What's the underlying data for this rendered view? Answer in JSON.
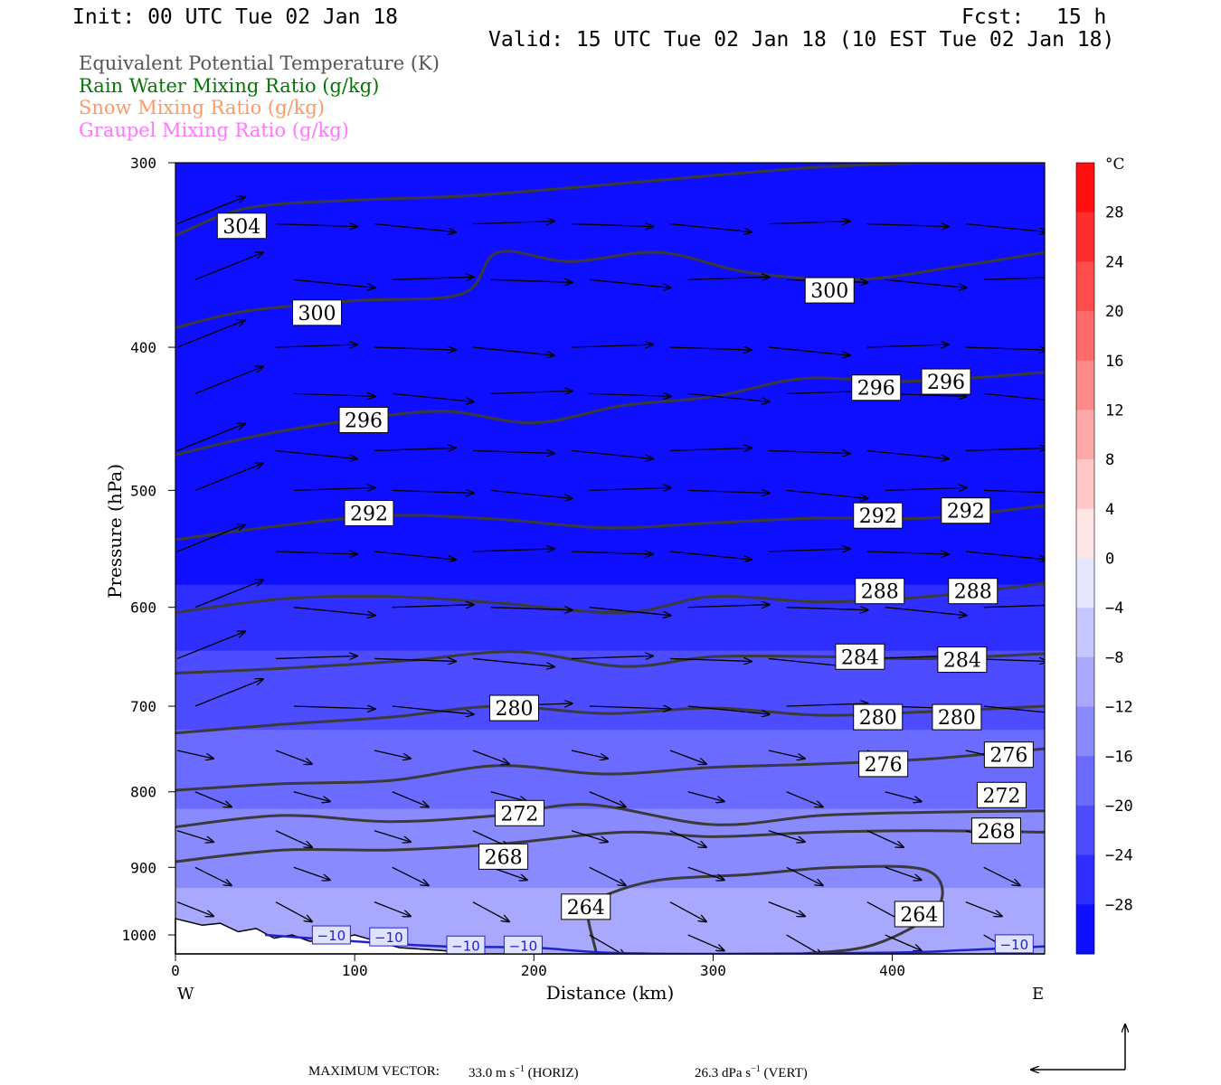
{
  "header": {
    "init": "Init: 00 UTC Tue 02 Jan 18",
    "fcst_label": "Fcst:",
    "fcst_value": "15 h",
    "valid": "Valid: 15 UTC Tue 02 Jan 18 (10 EST Tue 02 Jan 18)"
  },
  "legend": {
    "items": [
      {
        "label": "Equivalent Potential Temperature (K)",
        "color": "#555555"
      },
      {
        "label": "Rain Water Mixing Ratio (g/kg)",
        "color": "#007700"
      },
      {
        "label": "Snow Mixing Ratio (g/kg)",
        "color": "#ff9966"
      },
      {
        "label": "Graupel Mixing Ratio (g/kg)",
        "color": "#ff77ff"
      }
    ]
  },
  "colorbar": {
    "unit": "°C",
    "ticks": [
      "28",
      "24",
      "20",
      "16",
      "12",
      "8",
      "4",
      "0",
      "−4",
      "−8",
      "−12",
      "−16",
      "−20",
      "−24",
      "−28"
    ]
  },
  "footer": {
    "max_vector_label": "MAXIMUM VECTOR:",
    "horiz_value": "33.0 m s",
    "horiz_tag": "(HORIZ)",
    "vert_value": "26.3 dPa s",
    "vert_tag": "(VERT)",
    "exponent": "−1"
  },
  "chart_data": {
    "type": "heatmap",
    "subtype": "vertical cross-section (temperature shading, theta-e contours, wind vectors)",
    "xlabel": "Distance (km)",
    "ylabel": "Pressure (hPa)",
    "xlim": [
      0,
      485
    ],
    "ylim": [
      1030,
      300
    ],
    "y_scale": "log",
    "x_ticks": [
      "0",
      "100",
      "200",
      "300",
      "400"
    ],
    "y_ticks": [
      "300",
      "400",
      "500",
      "600",
      "700",
      "800",
      "900",
      "1000"
    ],
    "x_end_labels": {
      "left": "W",
      "right": "E"
    },
    "colorbar_range": [
      -32,
      32
    ],
    "colorbar_step": 4,
    "temperature_levels": [
      {
        "p": 300,
        "t": -32
      },
      {
        "p": 550,
        "t": -30
      },
      {
        "p": 600,
        "t": -26
      },
      {
        "p": 700,
        "t": -21
      },
      {
        "p": 800,
        "t": -17
      },
      {
        "p": 900,
        "t": -13
      },
      {
        "p": 980,
        "t": -9
      },
      {
        "p": 1030,
        "t": -8
      }
    ],
    "theta_e_contours": [
      {
        "value": 304,
        "label": "304",
        "points": [
          [
            0,
            336
          ],
          [
            40,
            322
          ],
          [
            100,
            318
          ],
          [
            160,
            316
          ],
          [
            220,
            312
          ],
          [
            300,
            306
          ],
          [
            360,
            302
          ],
          [
            420,
            300
          ],
          [
            485,
            300
          ]
        ]
      },
      {
        "value": 300,
        "label": "300",
        "points": [
          [
            0,
            388
          ],
          [
            40,
            378
          ],
          [
            100,
            372
          ],
          [
            160,
            368
          ],
          [
            180,
            345
          ],
          [
            220,
            350
          ],
          [
            270,
            345
          ],
          [
            320,
            356
          ],
          [
            380,
            360
          ],
          [
            440,
            352
          ],
          [
            485,
            345
          ]
        ]
      },
      {
        "value": 296,
        "label": "296",
        "points": [
          [
            0,
            473
          ],
          [
            50,
            458
          ],
          [
            100,
            448
          ],
          [
            150,
            442
          ],
          [
            200,
            450
          ],
          [
            250,
            438
          ],
          [
            300,
            432
          ],
          [
            350,
            420
          ],
          [
            400,
            422
          ],
          [
            440,
            420
          ],
          [
            485,
            416
          ]
        ]
      },
      {
        "value": 292,
        "label": "292",
        "points": [
          [
            0,
            540
          ],
          [
            60,
            528
          ],
          [
            120,
            520
          ],
          [
            180,
            523
          ],
          [
            240,
            530
          ],
          [
            300,
            526
          ],
          [
            360,
            522
          ],
          [
            420,
            522
          ],
          [
            485,
            512
          ]
        ]
      },
      {
        "value": 288,
        "label": "288",
        "points": [
          [
            0,
            605
          ],
          [
            60,
            592
          ],
          [
            120,
            590
          ],
          [
            180,
            596
          ],
          [
            250,
            605
          ],
          [
            300,
            590
          ],
          [
            360,
            595
          ],
          [
            420,
            590
          ],
          [
            485,
            578
          ]
        ]
      },
      {
        "value": 284,
        "label": "284",
        "points": [
          [
            0,
            665
          ],
          [
            60,
            660
          ],
          [
            130,
            652
          ],
          [
            190,
            643
          ],
          [
            250,
            658
          ],
          [
            300,
            648
          ],
          [
            360,
            648
          ],
          [
            420,
            650
          ],
          [
            485,
            645
          ]
        ]
      },
      {
        "value": 280,
        "label": "280",
        "points": [
          [
            0,
            730
          ],
          [
            60,
            720
          ],
          [
            120,
            712
          ],
          [
            180,
            700
          ],
          [
            240,
            708
          ],
          [
            300,
            702
          ],
          [
            360,
            710
          ],
          [
            420,
            706
          ],
          [
            485,
            700
          ]
        ]
      },
      {
        "value": 276,
        "label": "276",
        "points": [
          [
            0,
            798
          ],
          [
            60,
            790
          ],
          [
            120,
            786
          ],
          [
            180,
            768
          ],
          [
            240,
            778
          ],
          [
            300,
            770
          ],
          [
            360,
            766
          ],
          [
            420,
            760
          ],
          [
            485,
            748
          ]
        ]
      },
      {
        "value": 272,
        "label": "272",
        "points": [
          [
            0,
            845
          ],
          [
            60,
            830
          ],
          [
            120,
            838
          ],
          [
            180,
            830
          ],
          [
            230,
            816
          ],
          [
            300,
            842
          ],
          [
            360,
            830
          ],
          [
            420,
            826
          ],
          [
            485,
            824
          ]
        ]
      },
      {
        "value": 268,
        "label": "268",
        "points": [
          [
            0,
            892
          ],
          [
            60,
            876
          ],
          [
            120,
            876
          ],
          [
            180,
            868
          ],
          [
            250,
            852
          ],
          [
            300,
            858
          ],
          [
            360,
            852
          ],
          [
            420,
            850
          ],
          [
            485,
            852
          ]
        ]
      },
      {
        "value": 264,
        "label": "264",
        "points": [
          [
            235,
            1030
          ],
          [
            230,
            960
          ],
          [
            240,
            940
          ],
          [
            270,
            918
          ],
          [
            320,
            910
          ],
          [
            370,
            900
          ],
          [
            420,
            905
          ],
          [
            425,
            960
          ],
          [
            390,
            1015
          ],
          [
            350,
            1030
          ]
        ]
      }
    ],
    "isotherm_contours": [
      {
        "value": -10,
        "label": "−10",
        "color": "#2222cc",
        "points": [
          [
            50,
            1000
          ],
          [
            100,
            1010
          ],
          [
            150,
            1018
          ],
          [
            200,
            1020
          ],
          [
            240,
            1028
          ],
          [
            300,
            1030
          ],
          [
            400,
            1028
          ],
          [
            440,
            1024
          ],
          [
            485,
            1018
          ]
        ]
      }
    ],
    "isotherm_labels": [
      {
        "text": "−10",
        "x": 87,
        "p": 1000
      },
      {
        "text": "−10",
        "x": 119,
        "p": 1003
      },
      {
        "text": "−10",
        "x": 162,
        "p": 1016
      },
      {
        "text": "−10",
        "x": 194,
        "p": 1016
      },
      {
        "text": "−10",
        "x": 468,
        "p": 1014
      }
    ],
    "contour_label_positions": [
      {
        "text": "304",
        "x": 37,
        "p": 331
      },
      {
        "text": "300",
        "x": 79,
        "p": 379
      },
      {
        "text": "300",
        "x": 365,
        "p": 366
      },
      {
        "text": "296",
        "x": 105,
        "p": 448
      },
      {
        "text": "296",
        "x": 391,
        "p": 426
      },
      {
        "text": "296",
        "x": 430,
        "p": 422
      },
      {
        "text": "292",
        "x": 108,
        "p": 518
      },
      {
        "text": "292",
        "x": 392,
        "p": 520
      },
      {
        "text": "292",
        "x": 441,
        "p": 516
      },
      {
        "text": "288",
        "x": 393,
        "p": 585
      },
      {
        "text": "288",
        "x": 445,
        "p": 585
      },
      {
        "text": "284",
        "x": 382,
        "p": 648
      },
      {
        "text": "284",
        "x": 439,
        "p": 651
      },
      {
        "text": "280",
        "x": 189,
        "p": 702
      },
      {
        "text": "280",
        "x": 392,
        "p": 712
      },
      {
        "text": "280",
        "x": 436,
        "p": 712
      },
      {
        "text": "276",
        "x": 395,
        "p": 766
      },
      {
        "text": "276",
        "x": 465,
        "p": 755
      },
      {
        "text": "272",
        "x": 192,
        "p": 827
      },
      {
        "text": "272",
        "x": 461,
        "p": 804
      },
      {
        "text": "268",
        "x": 183,
        "p": 885
      },
      {
        "text": "268",
        "x": 458,
        "p": 850
      },
      {
        "text": "264",
        "x": 229,
        "p": 957
      },
      {
        "text": "264",
        "x": 415,
        "p": 968
      }
    ],
    "terrain_pressure": [
      [
        0,
        975
      ],
      [
        15,
        985
      ],
      [
        25,
        982
      ],
      [
        35,
        995
      ],
      [
        45,
        990
      ],
      [
        55,
        1005
      ],
      [
        65,
        1000
      ],
      [
        75,
        1010
      ],
      [
        90,
        1006
      ],
      [
        100,
        1000
      ],
      [
        110,
        1008
      ],
      [
        125,
        1020
      ],
      [
        150,
        1025
      ],
      [
        170,
        1030
      ],
      [
        485,
        1030
      ]
    ],
    "wind_vectors_note": "Wind vectors are westerly aloft (rising to NE near the western edge), turning to WNW/NW below ~750 hPa."
  }
}
